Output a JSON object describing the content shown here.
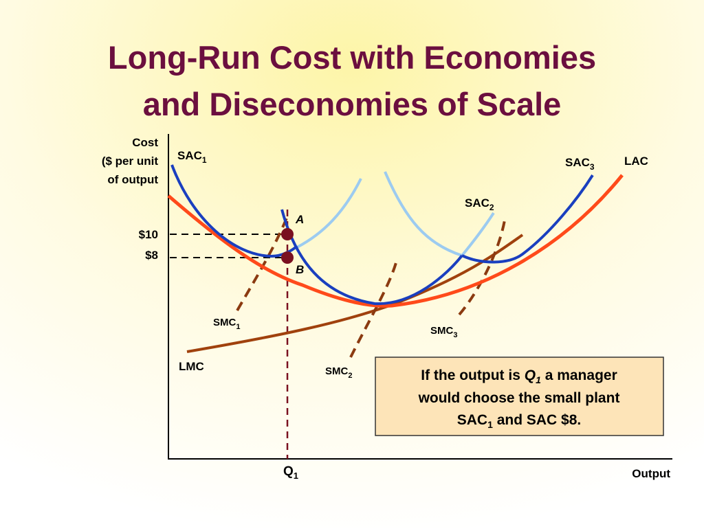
{
  "title": [
    "Long-Run Cost with Economies",
    "and Diseconomies of Scale"
  ],
  "axes": {
    "y_label": [
      "Cost",
      "($ per unit",
      "of output"
    ],
    "x_label": "Output"
  },
  "cost_labels": [
    "$10",
    "$8"
  ],
  "curve_labels": {
    "sac1": {
      "text": "SAC",
      "sub": "1"
    },
    "sac2": {
      "text": "SAC",
      "sub": "2"
    },
    "sac3": {
      "text": "SAC",
      "sub": "3"
    },
    "lac": {
      "text": "LAC"
    },
    "lmc": {
      "text": "LMC"
    },
    "smc1": {
      "text": "SMC",
      "sub": "1"
    },
    "smc2": {
      "text": "SMC",
      "sub": "2"
    },
    "smc3": {
      "text": "SMC",
      "sub": "3"
    }
  },
  "points": [
    "A",
    "B"
  ],
  "quantity": {
    "text": "Q",
    "sub": "1"
  },
  "note": {
    "line1": [
      "If the output is ",
      "Q",
      "1",
      " a manager"
    ],
    "line2": "would choose the small plant",
    "line3": [
      "SAC",
      "1",
      " and SAC $8."
    ]
  }
}
